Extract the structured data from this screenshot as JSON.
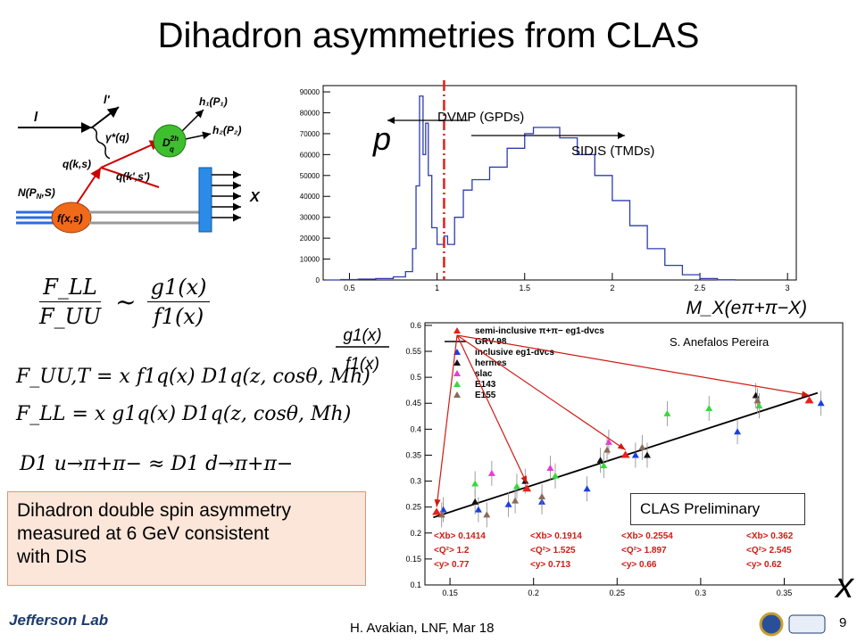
{
  "title": "Dihadron asymmetries from CLAS",
  "equations": {
    "ratio_lhs_num": "F_LL",
    "ratio_lhs_den": "F_UU",
    "sim": "~",
    "ratio_rhs_num": "g1(x)",
    "ratio_rhs_den": "f1(x)",
    "eq1": "F_UU,T = x f1q(x) D1q(z, cosθ, Mh)",
    "eq2": "F_LL = x g1q(x) D1q(z, cosθ, Mh)",
    "eq3": "D1 u→π+π− ≈ D1 d→π+π−"
  },
  "summary": {
    "line1": "Dihadron double spin asymmetry",
    "line2": "measured at 6 GeV consistent",
    "line3": "with DIS"
  },
  "feynman": {
    "l": "l",
    "lprime": "l'",
    "photon": "γ*(q)",
    "h1": "h₁(P₁)",
    "h2": "h₂(P₂)",
    "frag": "D",
    "frag_sup": "2h",
    "frag_sub": "q",
    "qks": "q(k,s)",
    "qkprime": "q(k',s')",
    "nucleon": "N(P",
    "nucleon_sub": "N",
    "nucleon_end": ",S)",
    "pdf": "f(x,s)",
    "X": "X"
  },
  "mx_plot": {
    "annot_dvmp": "DVMP (GPDs)",
    "annot_sidis": "SIDIS (TMDs)",
    "p_label": "p",
    "xaxis_label": "M_X(eπ+π−X)",
    "y_ticks": [
      "90000",
      "80000",
      "70000",
      "60000",
      "50000",
      "40000",
      "30000",
      "20000",
      "10000",
      "0"
    ],
    "x_ticks": [
      "0.5",
      "1",
      "1.5",
      "2",
      "2.5",
      "3"
    ],
    "cut_x": 1.04,
    "hist": [
      [
        0.37,
        0
      ],
      [
        0.45,
        200
      ],
      [
        0.55,
        400
      ],
      [
        0.65,
        700
      ],
      [
        0.75,
        1500
      ],
      [
        0.82,
        4000
      ],
      [
        0.86,
        15000
      ],
      [
        0.88,
        45000
      ],
      [
        0.9,
        88000
      ],
      [
        0.92,
        60000
      ],
      [
        0.935,
        75000
      ],
      [
        0.95,
        50000
      ],
      [
        0.97,
        25000
      ],
      [
        1.0,
        17000
      ],
      [
        1.04,
        21000
      ],
      [
        1.06,
        17000
      ],
      [
        1.1,
        30000
      ],
      [
        1.15,
        43000
      ],
      [
        1.2,
        48000
      ],
      [
        1.3,
        54000
      ],
      [
        1.4,
        63000
      ],
      [
        1.5,
        70000
      ],
      [
        1.55,
        73000
      ],
      [
        1.6,
        73000
      ],
      [
        1.7,
        68000
      ],
      [
        1.8,
        60000
      ],
      [
        1.9,
        50000
      ],
      [
        2.0,
        38000
      ],
      [
        2.1,
        26000
      ],
      [
        2.2,
        15000
      ],
      [
        2.3,
        7000
      ],
      [
        2.4,
        2500
      ],
      [
        2.5,
        700
      ],
      [
        2.6,
        100
      ],
      [
        2.7,
        0
      ]
    ]
  },
  "asym_plot": {
    "author": "S. Anefalos Pereira",
    "prelim": "CLAS Preliminary",
    "ylabel_num": "g1(x)",
    "ylabel_den": "f1(x)",
    "xlabel": "x",
    "y_ticks": [
      "0.6",
      "0.55",
      "0.5",
      "0.45",
      "0.4",
      "0.35",
      "0.3",
      "0.25",
      "0.2",
      "0.15",
      "0.1"
    ],
    "x_ticks": [
      "0.15",
      "0.2",
      "0.25",
      "0.3",
      "0.35"
    ],
    "legend": [
      "semi-inclusive π+π− eg1-dvcs",
      "GRV-98",
      "inclusive eg1-dvcs",
      "hermes",
      "slac",
      "E143",
      "E155"
    ],
    "legend_colors": [
      "#e8201a",
      "#000000",
      "#1a3fe0",
      "#111111",
      "#e83ad8",
      "#3ad83a",
      "#8a6a5a"
    ],
    "bins": [
      {
        "xb": "<Xb> 0.1414",
        "q2": "<Q²> 1.2",
        "y": "<y>    0.77"
      },
      {
        "xb": "<Xb> 0.1914",
        "q2": "<Q²> 1.525",
        "y": "<y>    0.713"
      },
      {
        "xb": "<Xb> 0.2554",
        "q2": "<Q²> 1.897",
        "y": "<y>    0.66"
      },
      {
        "xb": "<Xb> 0.362",
        "q2": "<Q²> 2.545",
        "y": "<y>    0.62"
      }
    ],
    "red_points": [
      [
        0.142,
        0.24
      ],
      [
        0.196,
        0.285
      ],
      [
        0.255,
        0.35
      ],
      [
        0.365,
        0.455
      ]
    ],
    "grv_line": [
      [
        0.14,
        0.23
      ],
      [
        0.37,
        0.47
      ]
    ],
    "blue_points": [
      [
        0.146,
        0.245
      ],
      [
        0.167,
        0.245
      ],
      [
        0.185,
        0.255
      ],
      [
        0.205,
        0.26
      ],
      [
        0.232,
        0.285
      ],
      [
        0.261,
        0.35
      ],
      [
        0.322,
        0.395
      ],
      [
        0.372,
        0.45
      ]
    ],
    "black_points": [
      [
        0.165,
        0.26
      ],
      [
        0.195,
        0.3
      ],
      [
        0.24,
        0.34
      ],
      [
        0.268,
        0.35
      ],
      [
        0.333,
        0.465
      ]
    ],
    "magenta_points": [
      [
        0.175,
        0.315
      ],
      [
        0.21,
        0.325
      ],
      [
        0.245,
        0.375
      ]
    ],
    "green_points": [
      [
        0.165,
        0.295
      ],
      [
        0.19,
        0.29
      ],
      [
        0.213,
        0.31
      ],
      [
        0.242,
        0.33
      ],
      [
        0.28,
        0.43
      ],
      [
        0.305,
        0.44
      ],
      [
        0.335,
        0.445
      ]
    ],
    "brown_points": [
      [
        0.145,
        0.235
      ],
      [
        0.172,
        0.235
      ],
      [
        0.189,
        0.262
      ],
      [
        0.205,
        0.27
      ],
      [
        0.244,
        0.36
      ],
      [
        0.265,
        0.365
      ],
      [
        0.334,
        0.455
      ]
    ]
  },
  "footer": {
    "logo": "Jefferson Lab",
    "text": "H. Avakian,  LNF,  Mar 18",
    "page": "9"
  }
}
